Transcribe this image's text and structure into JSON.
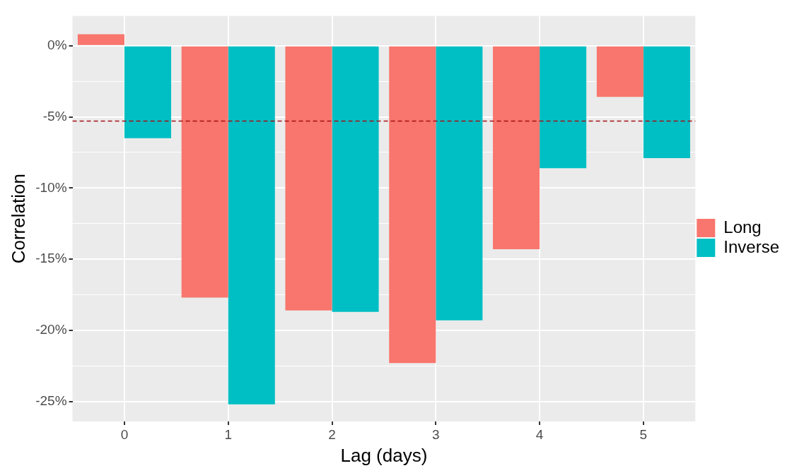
{
  "chart_data": {
    "type": "bar",
    "xlabel": "Lag (days)",
    "ylabel": "Correlation",
    "categories": [
      "0",
      "1",
      "2",
      "3",
      "4",
      "5"
    ],
    "series": [
      {
        "name": "Long",
        "color": "#f8766d",
        "values": [
          0.8,
          -17.7,
          -18.6,
          -22.3,
          -14.3,
          -3.6
        ]
      },
      {
        "name": "Inverse",
        "color": "#00bfc4",
        "values": [
          -6.5,
          -25.2,
          -18.7,
          -19.3,
          -8.6,
          -7.9
        ]
      }
    ],
    "ylim": [
      -26.4,
      2.1
    ],
    "yticks": [
      {
        "value": -25,
        "label": "-25%"
      },
      {
        "value": -22.5,
        "label": null
      },
      {
        "value": -20,
        "label": "-20%"
      },
      {
        "value": -17.5,
        "label": null
      },
      {
        "value": -15,
        "label": "-15%"
      },
      {
        "value": -12.5,
        "label": null
      },
      {
        "value": -10,
        "label": "-10%"
      },
      {
        "value": -7.5,
        "label": null
      },
      {
        "value": -5,
        "label": "-5%"
      },
      {
        "value": -2.5,
        "label": null
      },
      {
        "value": 0,
        "label": "0%"
      }
    ],
    "ref_lines": [
      {
        "axis": "y",
        "value": -5.3,
        "color": "#a50f15",
        "line_style": "dashed"
      }
    ],
    "grid": true,
    "legend": "right"
  }
}
